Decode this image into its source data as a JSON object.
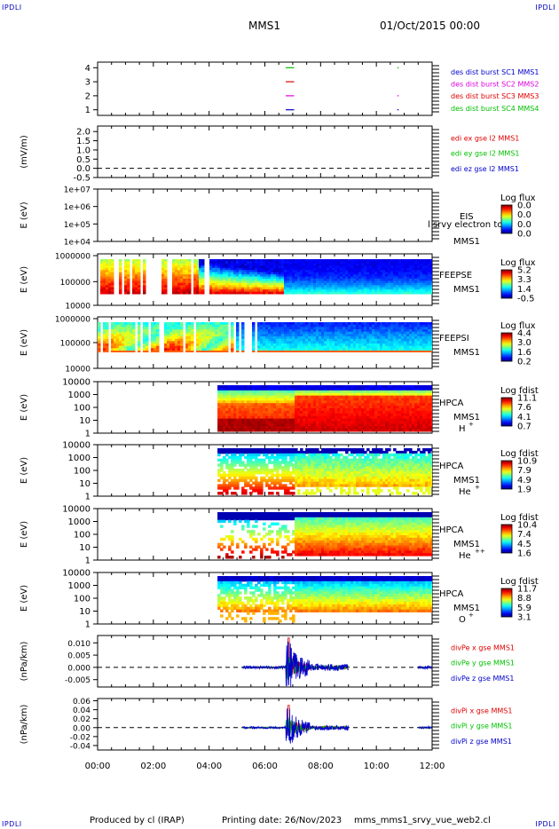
{
  "header": {
    "corner_label": "IPDLI",
    "title": "MMS1",
    "date": "01/Oct/2015 00:00"
  },
  "footer": {
    "produced_by": "Produced by cl (IRAP)",
    "printing_date": "Printing date: 26/Nov/2023",
    "file": "mms_mms1_srvy_vue_web2.cl"
  },
  "colors": {
    "blue": "#0000cc",
    "red": "#e00000",
    "magenta": "#dd00dd",
    "green": "#00c000"
  },
  "chart_data": [
    {
      "type": "line",
      "panel": "burst",
      "yticks": [
        "1",
        "2",
        "3",
        "4"
      ],
      "ylim": [
        0.6,
        4.4
      ],
      "legend": [
        {
          "text": "des dist burst SC1 MMS1",
          "color": "#0000cc"
        },
        {
          "text": "des dist burst SC2 MMS2",
          "color": "#dd00dd"
        },
        {
          "text": "des dist burst SC3 MMS3",
          "color": "#e00000"
        },
        {
          "text": "des dist burst SC4 MMS4",
          "color": "#00c000"
        }
      ],
      "segments": [
        {
          "y": 4,
          "x": [
            6.75,
            7.05
          ],
          "color": "#00c000"
        },
        {
          "y": 3,
          "x": [
            6.75,
            7.05
          ],
          "color": "#e00000"
        },
        {
          "y": 2,
          "x": [
            6.75,
            7.05
          ],
          "color": "#dd00dd"
        },
        {
          "y": 1,
          "x": [
            6.75,
            7.05
          ],
          "color": "#0000cc"
        },
        {
          "y": 4,
          "x": [
            10.75,
            10.8
          ],
          "color": "#00c000"
        },
        {
          "y": 2,
          "x": [
            10.75,
            10.8
          ],
          "color": "#dd00dd"
        },
        {
          "y": 1,
          "x": [
            10.75,
            10.8
          ],
          "color": "#0000cc"
        }
      ]
    },
    {
      "type": "line",
      "panel": "edi",
      "ylabel": "(mV/m)",
      "yticks": [
        "-0.5",
        "0.0",
        "0.5",
        "1.0",
        "1.5",
        "2.0"
      ],
      "ylim": [
        -0.5,
        2.3
      ],
      "legend": [
        {
          "text": "edi ex gse l2 MMS1",
          "color": "#e00000"
        },
        {
          "text": "edi ey gse l2 MMS1",
          "color": "#00c000"
        },
        {
          "text": "edi ez gse l2 MMS1",
          "color": "#0000cc"
        }
      ]
    },
    {
      "type": "heatmap",
      "panel": "eis",
      "ylabel": "E (eV)",
      "scale": "log",
      "yticks": [
        "1e+04",
        "1e+05",
        "1e+06",
        "1e+07"
      ],
      "instrument": [
        "EIS",
        "MMS1"
      ],
      "overlay_text": "l srvy electron to",
      "colorbar": {
        "title": "Log flux",
        "ticks": [
          "0.0",
          "0.0",
          "0.0",
          "0.0"
        ]
      }
    },
    {
      "type": "heatmap",
      "panel": "feepse",
      "ylabel": "E (eV)",
      "scale": "log",
      "yticks": [
        "10000",
        "100000",
        "1000000"
      ],
      "instrument": [
        "FEEPSE",
        "MMS1"
      ],
      "colorbar": {
        "title": "Log flux",
        "ticks": [
          "5.2",
          "3.3",
          "1.4",
          "-0.5"
        ]
      }
    },
    {
      "type": "heatmap",
      "panel": "feepsi",
      "ylabel": "E (eV)",
      "scale": "log",
      "yticks": [
        "10000",
        "100000",
        "1000000"
      ],
      "instrument": [
        "FEEPSI",
        "MMS1"
      ],
      "colorbar": {
        "title": "Log flux",
        "ticks": [
          "4.4",
          "3.0",
          "1.6",
          "0.2"
        ]
      }
    },
    {
      "type": "heatmap",
      "panel": "hpca-h",
      "ylabel": "E (eV)",
      "scale": "log",
      "yticks": [
        "1",
        "10",
        "100",
        "1000",
        "10000"
      ],
      "instrument": [
        "HPCA",
        "MMS1"
      ],
      "species": "H",
      "species_sup": "+",
      "data_start_hour": 4.3,
      "colorbar": {
        "title": "Log fdist",
        "ticks": [
          "11.1",
          "7.6",
          "4.1",
          "0.7"
        ]
      }
    },
    {
      "type": "heatmap",
      "panel": "hpca-he",
      "ylabel": "E (eV)",
      "scale": "log",
      "yticks": [
        "1",
        "10",
        "100",
        "1000",
        "10000"
      ],
      "instrument": [
        "HPCA",
        "MMS1"
      ],
      "species": "He",
      "species_sup": "+",
      "data_start_hour": 4.3,
      "colorbar": {
        "title": "Log fdist",
        "ticks": [
          "10.9",
          "7.9",
          "4.9",
          "1.9"
        ]
      }
    },
    {
      "type": "heatmap",
      "panel": "hpca-he2",
      "ylabel": "E (eV)",
      "scale": "log",
      "yticks": [
        "1",
        "10",
        "100",
        "1000",
        "10000"
      ],
      "instrument": [
        "HPCA",
        "MMS1"
      ],
      "species": "He",
      "species_sup": "++",
      "data_start_hour": 4.3,
      "colorbar": {
        "title": "Log fdist",
        "ticks": [
          "10.4",
          "7.4",
          "4.5",
          "1.6"
        ]
      }
    },
    {
      "type": "heatmap",
      "panel": "hpca-o",
      "ylabel": "E (eV)",
      "scale": "log",
      "yticks": [
        "1",
        "10",
        "100",
        "1000",
        "10000"
      ],
      "instrument": [
        "HPCA",
        "MMS1"
      ],
      "species": "O",
      "species_sup": "+",
      "data_start_hour": 4.3,
      "colorbar": {
        "title": "Log fdist",
        "ticks": [
          "11.7",
          "8.8",
          "5.9",
          "3.1"
        ]
      }
    },
    {
      "type": "line",
      "panel": "divpe",
      "ylabel": "(nPa/km)",
      "yticks": [
        "-0.005",
        "0.000",
        "0.005",
        "0.010"
      ],
      "ylim": [
        -0.008,
        0.013
      ],
      "legend": [
        {
          "text": "divPe x gse MMS1",
          "color": "#e00000"
        },
        {
          "text": "divPe y gse MMS1",
          "color": "#00c000"
        },
        {
          "text": "divPe z gse MMS1",
          "color": "#0000cc"
        }
      ],
      "segments_hours": [
        [
          5.2,
          9.0
        ],
        [
          11.5,
          12.0
        ]
      ],
      "burst_peak_hour": 6.85,
      "peak_value": 0.012
    },
    {
      "type": "line",
      "panel": "divpi",
      "ylabel": "(nPa/km)",
      "yticks": [
        "-0.04",
        "-0.02",
        "0.00",
        "0.02",
        "0.04",
        "0.06"
      ],
      "ylim": [
        -0.05,
        0.065
      ],
      "legend": [
        {
          "text": "divPi x gse MMS1",
          "color": "#e00000"
        },
        {
          "text": "divPi y gse MMS1",
          "color": "#00c000"
        },
        {
          "text": "divPi z gse MMS1",
          "color": "#0000cc"
        }
      ],
      "segments_hours": [
        [
          5.2,
          9.0
        ],
        [
          11.5,
          12.0
        ]
      ],
      "burst_peak_hour": 6.85,
      "peak_value": 0.05
    }
  ],
  "x_axis": {
    "ticks": [
      "00:00",
      "02:00",
      "04:00",
      "06:00",
      "08:00",
      "10:00",
      "12:00"
    ],
    "xlim_hours": [
      0,
      12
    ]
  }
}
